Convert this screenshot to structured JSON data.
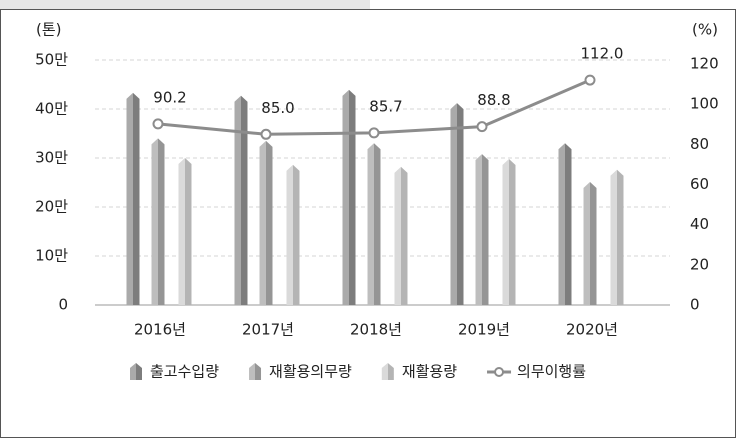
{
  "chart_data": {
    "type": "bar",
    "y_label": "(톤)",
    "y2_label": "(%)",
    "categories": [
      "2016년",
      "2017년",
      "2018년",
      "2019년",
      "2020년"
    ],
    "series": [
      {
        "name": "출고수입량",
        "color": "#8e8e8e",
        "values": [
          43.3,
          42.7,
          43.9,
          41.2,
          33.0
        ]
      },
      {
        "name": "재활용의무량",
        "color": "#a9a9a9",
        "values": [
          34.0,
          33.5,
          33.0,
          30.8,
          25.1
        ]
      },
      {
        "name": "재활용량",
        "color": "#cdcdcd",
        "values": [
          30.0,
          28.6,
          28.2,
          29.8,
          27.6
        ]
      },
      {
        "name": "의무이행률",
        "type": "line",
        "axis": "y2",
        "color": "#8c8c8c",
        "values": [
          90.2,
          85.0,
          85.7,
          88.8,
          112.0
        ],
        "value_labels": [
          "90.2",
          "85.0",
          "85.7",
          "88.8",
          "112.0"
        ]
      }
    ],
    "ylim": [
      0,
      50
    ],
    "yticks": [
      0,
      {
        "value": 10,
        "label": "10만"
      },
      {
        "value": 20,
        "label": "20만"
      },
      {
        "value": 30,
        "label": "30만"
      },
      {
        "value": 40,
        "label": "40만"
      },
      {
        "value": 50,
        "label": "50만"
      }
    ],
    "y2lim": [
      0,
      122
    ],
    "y2ticks": [
      0,
      20,
      40,
      60,
      80,
      100,
      120
    ],
    "grid": true
  }
}
